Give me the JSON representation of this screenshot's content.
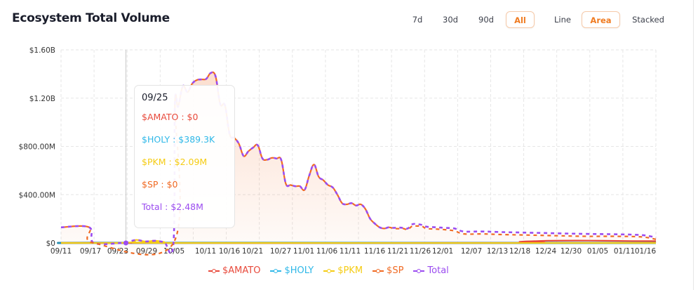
{
  "header": {
    "title": "Ecosystem Total Volume",
    "range_buttons": [
      {
        "label": "7d",
        "active": false
      },
      {
        "label": "30d",
        "active": false
      },
      {
        "label": "90d",
        "active": false
      },
      {
        "label": "All",
        "active": true
      }
    ],
    "mode_buttons": [
      {
        "label": "Line",
        "active": false
      },
      {
        "label": "Area",
        "active": true
      },
      {
        "label": "Stacked",
        "active": false
      }
    ],
    "accent_color": "#f07b21"
  },
  "tooltip": {
    "date": "09/25",
    "rows": [
      {
        "label": "$AMATO : $0",
        "color": "#e84a3c"
      },
      {
        "label": "$HOLY : $389.3K",
        "color": "#2fb8e8"
      },
      {
        "label": "$PKM : $2.09M",
        "color": "#f5cc14"
      },
      {
        "label": "$SP : $0",
        "color": "#f06a23"
      },
      {
        "label": "Total : $2.48M",
        "color": "#9b4cf0"
      }
    ]
  },
  "chart_data": {
    "type": "area",
    "title": "Ecosystem Total Volume",
    "xlabel": "",
    "ylabel": "",
    "ylim": [
      0,
      1600000000
    ],
    "y_ticks": [
      "$0",
      "$400.00M",
      "$800.00M",
      "$1.20B",
      "$1.60B"
    ],
    "y_tick_values": [
      0,
      400000000,
      800000000,
      1200000000,
      1600000000
    ],
    "x_ticks": [
      "09/11",
      "09/17",
      "09/23",
      "09/29",
      "10/05",
      "10/11",
      "10/16",
      "10/21",
      "10/27",
      "11/01",
      "11/06",
      "11/11",
      "11/16",
      "11/21",
      "11/26",
      "12/01",
      "12/07",
      "12/13",
      "12/18",
      "12/24",
      "12/30",
      "01/05",
      "01/11",
      "01/16"
    ],
    "grid": true,
    "legend_position": "bottom",
    "x_day_range": [
      0,
      127
    ],
    "series": [
      {
        "name": "$AMATO",
        "color": "#e84a3c",
        "points": [
          [
            0,
            0
          ],
          [
            95,
            0
          ],
          [
            98,
            10000000
          ],
          [
            104,
            18000000
          ],
          [
            110,
            20000000
          ],
          [
            116,
            18000000
          ],
          [
            122,
            16000000
          ],
          [
            127,
            15000000
          ]
        ]
      },
      {
        "name": "$HOLY",
        "color": "#2fb8e8",
        "points": [
          [
            0,
            0
          ],
          [
            14,
            389300
          ],
          [
            127,
            0
          ]
        ]
      },
      {
        "name": "$PKM",
        "color": "#f5cc14",
        "points": [
          [
            0,
            0
          ],
          [
            14,
            2090000
          ],
          [
            16,
            25000000
          ],
          [
            18,
            12000000
          ],
          [
            20,
            18000000
          ],
          [
            22,
            8000000
          ],
          [
            24,
            0
          ],
          [
            127,
            0
          ]
        ]
      },
      {
        "name": "$SP",
        "color": "#f06a23",
        "points": [
          [
            0,
            130000000
          ],
          [
            6,
            130000000
          ],
          [
            7,
            0
          ],
          [
            24,
            0
          ],
          [
            24.3,
            1150000000
          ],
          [
            25,
            1130000000
          ],
          [
            26,
            1300000000
          ],
          [
            27,
            1250000000
          ],
          [
            28,
            1320000000
          ],
          [
            29,
            1350000000
          ],
          [
            30,
            1355000000
          ],
          [
            31,
            1360000000
          ],
          [
            32,
            1410000000
          ],
          [
            33,
            1380000000
          ],
          [
            34,
            1150000000
          ],
          [
            35,
            1140000000
          ],
          [
            36,
            900000000
          ],
          [
            37,
            870000000
          ],
          [
            38,
            820000000
          ],
          [
            39,
            720000000
          ],
          [
            40,
            760000000
          ],
          [
            41,
            790000000
          ],
          [
            42,
            810000000
          ],
          [
            43,
            700000000
          ],
          [
            44,
            690000000
          ],
          [
            45,
            705000000
          ],
          [
            46,
            700000000
          ],
          [
            47,
            690000000
          ],
          [
            48,
            490000000
          ],
          [
            49,
            480000000
          ],
          [
            50,
            470000000
          ],
          [
            51,
            470000000
          ],
          [
            52,
            440000000
          ],
          [
            53,
            560000000
          ],
          [
            54,
            650000000
          ],
          [
            55,
            550000000
          ],
          [
            56,
            520000000
          ],
          [
            57,
            480000000
          ],
          [
            58,
            460000000
          ],
          [
            59,
            400000000
          ],
          [
            60,
            330000000
          ],
          [
            61,
            320000000
          ],
          [
            62,
            330000000
          ],
          [
            63,
            310000000
          ],
          [
            64,
            320000000
          ],
          [
            65,
            280000000
          ],
          [
            66,
            200000000
          ],
          [
            67,
            160000000
          ],
          [
            68,
            130000000
          ],
          [
            69,
            120000000
          ],
          [
            70,
            130000000
          ],
          [
            71,
            120000000
          ],
          [
            72,
            118000000
          ],
          [
            73,
            120000000
          ],
          [
            74,
            112000000
          ],
          [
            75,
            140000000
          ],
          [
            76,
            140000000
          ],
          [
            77,
            140000000
          ],
          [
            78,
            120000000
          ],
          [
            80,
            115000000
          ],
          [
            82,
            110000000
          ],
          [
            84,
            100000000
          ],
          [
            86,
            75000000
          ],
          [
            90,
            75000000
          ],
          [
            94,
            70000000
          ],
          [
            100,
            65000000
          ],
          [
            106,
            60000000
          ],
          [
            112,
            55000000
          ],
          [
            118,
            55000000
          ],
          [
            124,
            50000000
          ],
          [
            127,
            30000000
          ]
        ]
      },
      {
        "name": "Total",
        "color": "#9b4cf0",
        "points": [
          [
            0,
            130000000
          ],
          [
            6,
            130000000
          ],
          [
            7,
            0
          ],
          [
            13,
            0
          ],
          [
            14,
            2480000
          ],
          [
            16,
            25000000
          ],
          [
            18,
            12000000
          ],
          [
            20,
            18000000
          ],
          [
            22,
            8000000
          ],
          [
            24,
            0
          ],
          [
            24.3,
            1150000000
          ],
          [
            25,
            1130000000
          ],
          [
            26,
            1300000000
          ],
          [
            27,
            1250000000
          ],
          [
            28,
            1320000000
          ],
          [
            29,
            1350000000
          ],
          [
            30,
            1355000000
          ],
          [
            31,
            1360000000
          ],
          [
            32,
            1410000000
          ],
          [
            33,
            1380000000
          ],
          [
            34,
            1150000000
          ],
          [
            35,
            1140000000
          ],
          [
            36,
            900000000
          ],
          [
            37,
            870000000
          ],
          [
            38,
            820000000
          ],
          [
            39,
            720000000
          ],
          [
            40,
            760000000
          ],
          [
            41,
            790000000
          ],
          [
            42,
            810000000
          ],
          [
            43,
            700000000
          ],
          [
            44,
            690000000
          ],
          [
            45,
            705000000
          ],
          [
            46,
            700000000
          ],
          [
            47,
            690000000
          ],
          [
            48,
            490000000
          ],
          [
            49,
            480000000
          ],
          [
            50,
            470000000
          ],
          [
            51,
            470000000
          ],
          [
            52,
            440000000
          ],
          [
            53,
            560000000
          ],
          [
            54,
            650000000
          ],
          [
            55,
            550000000
          ],
          [
            56,
            520000000
          ],
          [
            57,
            480000000
          ],
          [
            58,
            460000000
          ],
          [
            59,
            400000000
          ],
          [
            60,
            330000000
          ],
          [
            61,
            320000000
          ],
          [
            62,
            330000000
          ],
          [
            63,
            310000000
          ],
          [
            64,
            320000000
          ],
          [
            65,
            280000000
          ],
          [
            66,
            200000000
          ],
          [
            67,
            160000000
          ],
          [
            68,
            130000000
          ],
          [
            69,
            120000000
          ],
          [
            70,
            130000000
          ],
          [
            71,
            125000000
          ],
          [
            72,
            128000000
          ],
          [
            73,
            125000000
          ],
          [
            74,
            120000000
          ],
          [
            75,
            155000000
          ],
          [
            76,
            155000000
          ],
          [
            77,
            150000000
          ],
          [
            78,
            135000000
          ],
          [
            80,
            130000000
          ],
          [
            82,
            125000000
          ],
          [
            84,
            120000000
          ],
          [
            86,
            95000000
          ],
          [
            90,
            95000000
          ],
          [
            94,
            90000000
          ],
          [
            100,
            85000000
          ],
          [
            106,
            80000000
          ],
          [
            112,
            75000000
          ],
          [
            118,
            72000000
          ],
          [
            124,
            65000000
          ],
          [
            127,
            45000000
          ]
        ]
      }
    ],
    "hover_day": 14
  }
}
